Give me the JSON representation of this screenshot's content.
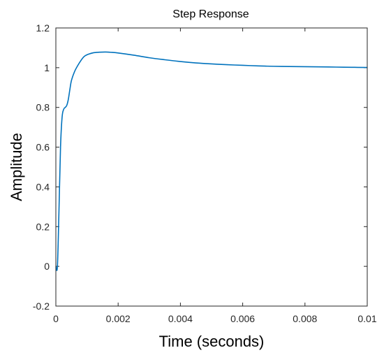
{
  "chart_data": {
    "type": "line",
    "title": "Step Response",
    "xlabel": "Time (seconds)",
    "ylabel": "Amplitude",
    "xlim": [
      0,
      0.01
    ],
    "ylim": [
      -0.2,
      1.2
    ],
    "xticks": [
      0,
      0.002,
      0.004,
      0.006,
      0.008,
      0.01
    ],
    "xtick_labels": [
      "0",
      "0.002",
      "0.004",
      "0.006",
      "0.008",
      "0.01"
    ],
    "yticks": [
      -0.2,
      0,
      0.2,
      0.4,
      0.6,
      0.8,
      1,
      1.2
    ],
    "ytick_labels": [
      "-0.2",
      "0",
      "0.2",
      "0.4",
      "0.6",
      "0.8",
      "1",
      "1.2"
    ],
    "grid": false,
    "line_color": "#0072BD",
    "series": [
      {
        "x": [
          0,
          5e-05,
          0.0001,
          0.00015,
          0.0002,
          0.00025,
          0.0003,
          0.00035,
          0.0004,
          0.00045,
          0.0005,
          0.0006,
          0.0007,
          0.0008,
          0.0009,
          0.001,
          0.0012,
          0.0014,
          0.0016,
          0.0018,
          0.002,
          0.0025,
          0.003,
          0.0035,
          0.004,
          0.0045,
          0.005,
          0.0055,
          0.006,
          0.0065,
          0.007,
          0.0075,
          0.008,
          0.0085,
          0.009,
          0.0095,
          0.01
        ],
        "y": [
          0,
          0,
          0.28,
          0.6,
          0.75,
          0.79,
          0.8,
          0.81,
          0.84,
          0.89,
          0.935,
          0.98,
          1.01,
          1.035,
          1.055,
          1.065,
          1.075,
          1.078,
          1.079,
          1.077,
          1.074,
          1.063,
          1.05,
          1.04,
          1.031,
          1.024,
          1.019,
          1.015,
          1.012,
          1.009,
          1.007,
          1.006,
          1.005,
          1.004,
          1.003,
          1.002,
          1.001
        ]
      }
    ]
  }
}
